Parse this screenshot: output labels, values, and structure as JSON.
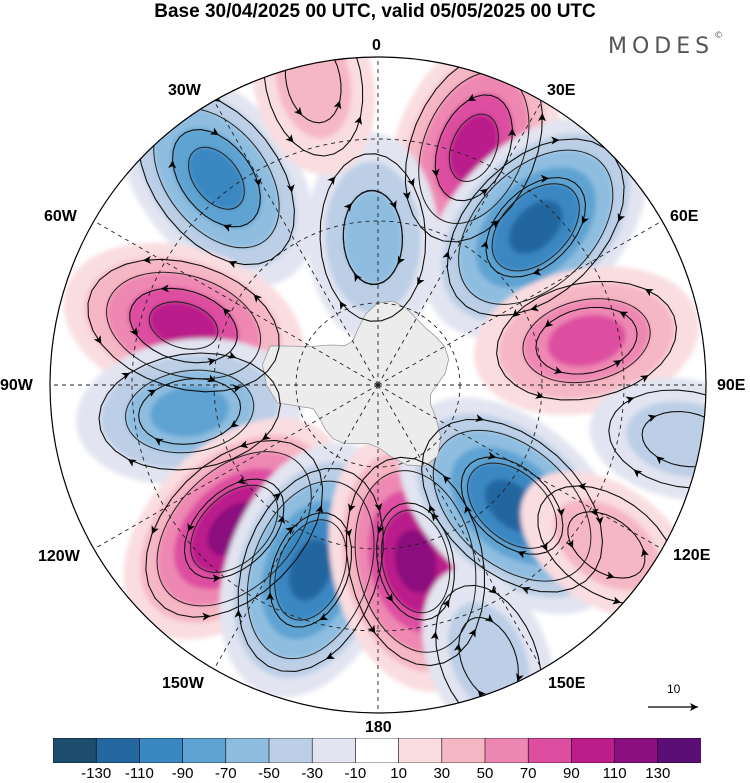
{
  "title": "Base 30/04/2025 00 UTC, valid 05/05/2025 00 UTC",
  "brand": {
    "name": "MODES",
    "mark": "©"
  },
  "longitude_labels": [
    {
      "id": "lon-0",
      "text": "0"
    },
    {
      "id": "lon-30e",
      "text": "30E"
    },
    {
      "id": "lon-60e",
      "text": "60E"
    },
    {
      "id": "lon-90e",
      "text": "90E"
    },
    {
      "id": "lon-120e",
      "text": "120E"
    },
    {
      "id": "lon-150e",
      "text": "150E"
    },
    {
      "id": "lon-180",
      "text": "180"
    },
    {
      "id": "lon-150w",
      "text": "150W"
    },
    {
      "id": "lon-120w",
      "text": "120W"
    },
    {
      "id": "lon-90w",
      "text": "90W"
    },
    {
      "id": "lon-60w",
      "text": "60W"
    },
    {
      "id": "lon-30w",
      "text": "30W"
    }
  ],
  "reference_vector": {
    "value": "10"
  },
  "colorbar": {
    "colors": [
      "#1d4e6e",
      "#2466a0",
      "#3b87c2",
      "#5ea3d2",
      "#8fbde0",
      "#bccfe6",
      "#e2e4f1",
      "#ffffff",
      "#fadde0",
      "#f6b7c4",
      "#ee88b2",
      "#dd4ea0",
      "#bb1d8b",
      "#8b0f7e",
      "#5b0f74"
    ],
    "tick_labels": [
      "-130",
      "-110",
      "-90",
      "-70",
      "-50",
      "-30",
      "-10",
      "10",
      "30",
      "50",
      "70",
      "90",
      "110",
      "130"
    ]
  },
  "anomalies": [
    {
      "lon": -38,
      "r": 0.8,
      "value": -95
    },
    {
      "lon": 22,
      "r": 0.78,
      "value": 95
    },
    {
      "lon": 45,
      "r": 0.68,
      "value": -115
    },
    {
      "lon": 78,
      "r": 0.65,
      "value": 85
    },
    {
      "lon": -73,
      "r": 0.62,
      "value": 90
    },
    {
      "lon": -2,
      "r": 0.45,
      "value": -55
    },
    {
      "lon": -98,
      "r": 0.58,
      "value": -70
    },
    {
      "lon": -135,
      "r": 0.62,
      "value": 120
    },
    {
      "lon": -160,
      "r": 0.6,
      "value": -125
    },
    {
      "lon": 168,
      "r": 0.55,
      "value": 125
    },
    {
      "lon": 132,
      "r": 0.55,
      "value": -110
    },
    {
      "lon": 158,
      "r": 0.9,
      "value": -35
    },
    {
      "lon": 100,
      "r": 0.95,
      "value": -30
    },
    {
      "lon": -12,
      "r": 0.95,
      "value": 40
    },
    {
      "lon": 125,
      "r": 0.85,
      "value": 30
    }
  ]
}
